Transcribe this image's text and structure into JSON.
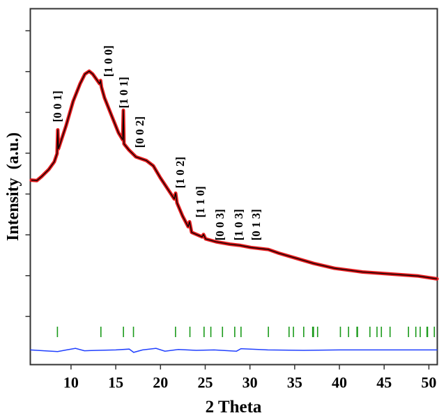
{
  "chart_data": {
    "type": "line",
    "title": "",
    "xlabel": "2 Theta",
    "ylabel": "Intensity  (a.u.)",
    "xlim": [
      5.45,
      50.94
    ],
    "ylim": [
      -1.18,
      7.54
    ],
    "xticks": [
      10,
      15,
      20,
      25,
      30,
      35,
      40,
      45,
      50
    ],
    "xtick_labels": [
      "10",
      "15",
      "20",
      "25",
      "30",
      "35",
      "40",
      "45",
      "50"
    ],
    "yticks": [
      0,
      1,
      2,
      3,
      4,
      5,
      6,
      7
    ],
    "ytick_labels_shown": false,
    "grid": false,
    "colors": {
      "observed": "#e31a1c",
      "calculated": "#000000",
      "difference": "#1f3fff",
      "bragg": "#1a9a1a"
    },
    "series": [
      {
        "kind": "observed-calculated",
        "x": [
          5.56,
          6.18,
          6.73,
          7.51,
          8.13,
          8.44,
          8.52,
          8.6,
          9.45,
          10.23,
          11.01,
          11.56,
          12.03,
          12.42,
          13.2,
          13.3,
          13.4,
          13.74,
          14.52,
          15.3,
          15.77,
          15.85,
          15.92,
          16.47,
          17.25,
          18.42,
          19.2,
          19.98,
          20.76,
          21.54,
          21.69,
          21.85,
          22.47,
          23.09,
          23.25,
          23.48,
          24.65,
          24.81,
          25.04,
          26.21,
          27.77,
          28.94,
          30.11,
          32.06,
          33.23,
          35.56,
          37.12,
          39.46,
          42.58,
          45.7,
          48.82,
          50.92
        ],
        "y": [
          3.34,
          3.33,
          3.43,
          3.6,
          3.79,
          3.99,
          4.57,
          4.11,
          4.68,
          5.27,
          5.7,
          5.94,
          6.01,
          5.94,
          5.7,
          5.78,
          5.62,
          5.36,
          4.93,
          4.5,
          4.33,
          5.05,
          4.23,
          4.08,
          3.91,
          3.82,
          3.69,
          3.4,
          3.14,
          2.88,
          3.02,
          2.78,
          2.46,
          2.2,
          2.32,
          2.06,
          1.95,
          2.01,
          1.9,
          1.83,
          1.77,
          1.74,
          1.69,
          1.64,
          1.55,
          1.4,
          1.3,
          1.18,
          1.09,
          1.04,
          0.99,
          0.92
        ]
      },
      {
        "kind": "difference",
        "x": [
          5.45,
          7.0,
          8.5,
          9.5,
          10.5,
          11.5,
          13.0,
          15.0,
          16.5,
          17.0,
          18.0,
          19.5,
          20.5,
          22.0,
          24.0,
          26.0,
          28.5,
          29.0,
          32.0,
          36.0,
          40.0,
          45.0,
          50.94
        ],
        "y": [
          -0.82,
          -0.84,
          -0.86,
          -0.82,
          -0.78,
          -0.84,
          -0.83,
          -0.82,
          -0.8,
          -0.88,
          -0.82,
          -0.78,
          -0.85,
          -0.81,
          -0.83,
          -0.82,
          -0.85,
          -0.79,
          -0.82,
          -0.83,
          -0.82,
          -0.82,
          -0.82
        ]
      }
    ],
    "bragg_positions": [
      8.48,
      13.34,
      15.86,
      16.98,
      21.68,
      23.29,
      24.87,
      25.63,
      26.93,
      28.3,
      29.0,
      32.06,
      34.37,
      34.86,
      36.01,
      37.01,
      37.1,
      37.56,
      40.11,
      41.02,
      41.96,
      42.02,
      43.41,
      44.2,
      44.69,
      45.66,
      47.72,
      48.54,
      49.03,
      49.79,
      49.85,
      50.61
    ],
    "annotations": [
      {
        "text": "[0 0 1]",
        "x": 8.44,
        "y": 4.76
      },
      {
        "text": "[1 0 0]",
        "x": 14.13,
        "y": 5.87
      },
      {
        "text": "[1 0 1]",
        "x": 15.85,
        "y": 5.1
      },
      {
        "text": "[0 0 2]",
        "x": 17.64,
        "y": 4.13
      },
      {
        "text": "[1 0 2]",
        "x": 22.16,
        "y": 3.14
      },
      {
        "text": "[1 1 0]",
        "x": 24.42,
        "y": 2.42
      },
      {
        "text": "[0 0 3]",
        "x": 26.6,
        "y": 1.86
      },
      {
        "text": "[1 0 3]",
        "x": 28.71,
        "y": 1.86
      },
      {
        "text": "[0 1 3]",
        "x": 30.65,
        "y": 1.86
      }
    ]
  }
}
